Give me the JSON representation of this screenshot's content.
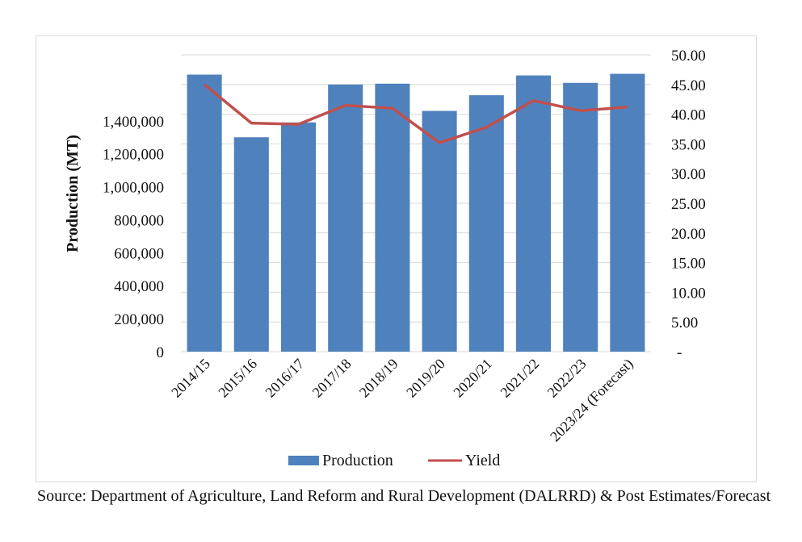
{
  "chart_data": {
    "type": "bar",
    "categories": [
      "2014/15",
      "2015/16",
      "2016/17",
      "2017/18",
      "2018/19",
      "2019/20",
      "2020/21",
      "2021/22",
      "2022/23",
      "2023/24 (Forecast)"
    ],
    "series": [
      {
        "name": "Production",
        "kind": "bar",
        "axis": "left",
        "values": [
          1680000,
          1300000,
          1390000,
          1620000,
          1625000,
          1460000,
          1555000,
          1675000,
          1630000,
          1685000
        ]
      },
      {
        "name": "Yield",
        "kind": "line",
        "axis": "right",
        "values": [
          45.0,
          38.5,
          38.3,
          41.5,
          41.0,
          35.2,
          37.8,
          42.3,
          40.6,
          41.2
        ]
      }
    ],
    "ylabel": "Production (MT)",
    "y_left_ticks": [
      "0",
      "200,000",
      "400,000",
      "600,000",
      "800,000",
      "1,000,000",
      "1,200,000",
      "1,400,000"
    ],
    "y_left_tick_values": [
      0,
      200000,
      400000,
      600000,
      800000,
      1000000,
      1200000,
      1400000
    ],
    "ylim_left": [
      0,
      1800000
    ],
    "y_right_ticks": [
      "-",
      "5.00",
      "10.00",
      "15.00",
      "20.00",
      "25.00",
      "30.00",
      "35.00",
      "40.00",
      "45.00",
      "50.00"
    ],
    "ylim_right": [
      0,
      50
    ],
    "grid": true,
    "legend_position": "bottom",
    "colors": {
      "Production": "#4f81bd",
      "Yield": "#c0504d"
    }
  },
  "source_note": "Source: Department of Agriculture, Land Reform and Rural Development (DALRRD) & Post Estimates/Forecast"
}
